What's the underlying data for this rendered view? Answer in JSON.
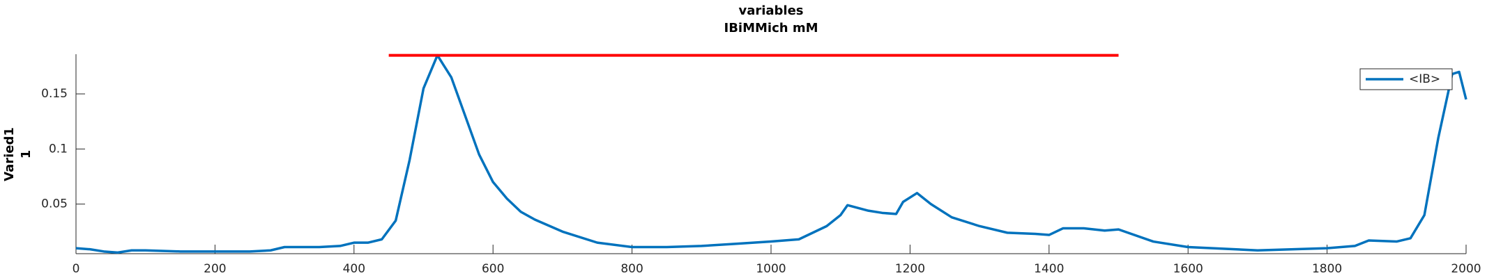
{
  "chart_data": {
    "type": "line",
    "title": [
      "variables",
      "IBiMMich mM"
    ],
    "ylabel": [
      "Varied1",
      "1"
    ],
    "x": [
      0,
      20,
      40,
      60,
      80,
      100,
      150,
      200,
      250,
      280,
      300,
      350,
      380,
      400,
      420,
      440,
      460,
      480,
      500,
      520,
      540,
      560,
      580,
      600,
      620,
      640,
      660,
      700,
      750,
      800,
      850,
      900,
      950,
      1000,
      1040,
      1060,
      1080,
      1100,
      1110,
      1140,
      1160,
      1180,
      1190,
      1210,
      1230,
      1260,
      1300,
      1340,
      1380,
      1400,
      1420,
      1450,
      1480,
      1500,
      1550,
      1600,
      1700,
      1800,
      1840,
      1860,
      1900,
      1920,
      1940,
      1960,
      1980,
      1990,
      2000
    ],
    "series": [
      {
        "name": "<IB>",
        "color": "#0072bd",
        "values": [
          0.01,
          0.009,
          0.007,
          0.006,
          0.008,
          0.008,
          0.007,
          0.007,
          0.007,
          0.008,
          0.011,
          0.011,
          0.012,
          0.015,
          0.015,
          0.018,
          0.035,
          0.09,
          0.155,
          0.185,
          0.165,
          0.13,
          0.095,
          0.07,
          0.055,
          0.043,
          0.036,
          0.025,
          0.015,
          0.011,
          0.011,
          0.012,
          0.014,
          0.016,
          0.018,
          0.024,
          0.03,
          0.04,
          0.049,
          0.044,
          0.042,
          0.041,
          0.052,
          0.06,
          0.05,
          0.038,
          0.03,
          0.024,
          0.023,
          0.022,
          0.028,
          0.028,
          0.026,
          0.027,
          0.016,
          0.011,
          0.008,
          0.01,
          0.012,
          0.017,
          0.016,
          0.019,
          0.04,
          0.11,
          0.168,
          0.17,
          0.145
        ]
      }
    ],
    "hline": {
      "x": [
        450,
        1500
      ],
      "y": 0.185,
      "color": "#ff0000"
    },
    "xlim": [
      0,
      2000
    ],
    "xticks": [
      0,
      200,
      400,
      600,
      800,
      1000,
      1200,
      1400,
      1600,
      1800,
      2000
    ],
    "ylim": [
      0.005,
      0.186
    ],
    "yticks": [
      0.05,
      0.1,
      0.15
    ],
    "legend": "upper right"
  }
}
